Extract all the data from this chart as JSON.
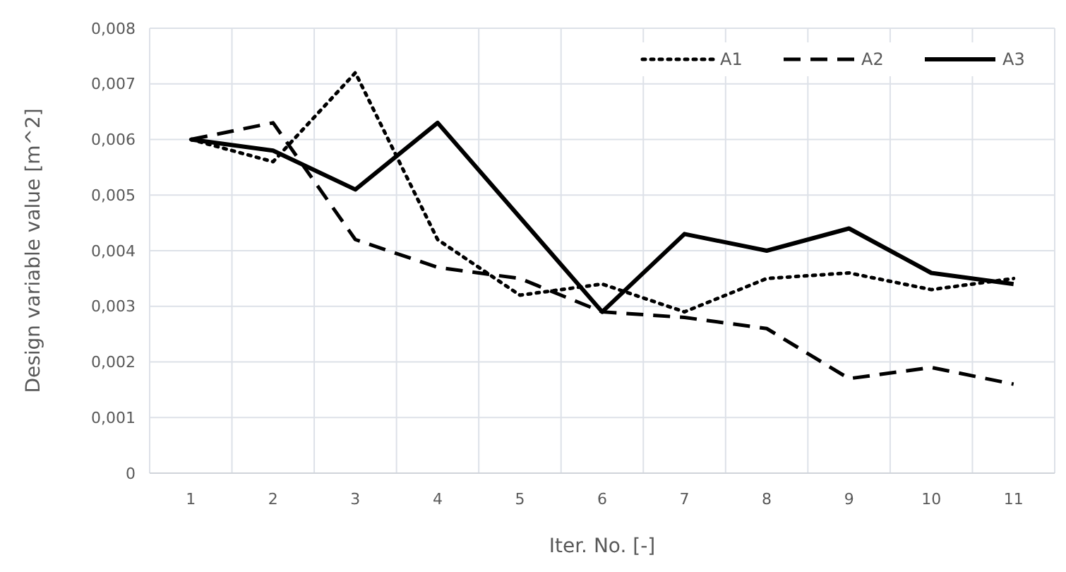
{
  "chart_data": {
    "type": "line",
    "xlabel": "Iter. No. [-]",
    "ylabel": "Design variable value [m^2]",
    "categories": [
      "1",
      "2",
      "3",
      "4",
      "5",
      "6",
      "7",
      "8",
      "9",
      "10",
      "11"
    ],
    "series": [
      {
        "name": "A1",
        "color": "#000000",
        "line_style": "dotted",
        "values": [
          0.006,
          0.0056,
          0.0072,
          0.0042,
          0.0032,
          0.0034,
          0.0029,
          0.0035,
          0.0036,
          0.0033,
          0.0035
        ]
      },
      {
        "name": "A2",
        "color": "#000000",
        "line_style": "dashed",
        "values": [
          0.006,
          0.0063,
          0.0042,
          0.0037,
          0.0035,
          0.0029,
          0.0028,
          0.0026,
          0.0017,
          0.0019,
          0.0016
        ]
      },
      {
        "name": "A3",
        "color": "#000000",
        "line_style": "solid",
        "values": [
          0.006,
          0.0058,
          0.0051,
          0.0063,
          0.0046,
          0.0029,
          0.0043,
          0.004,
          0.0044,
          0.0036,
          0.0034
        ]
      }
    ],
    "ylim": [
      0,
      0.008
    ],
    "yticks": [
      0,
      {
        "value": 0.001,
        "label": "0,001"
      },
      {
        "value": 0.002,
        "label": "0,002"
      },
      {
        "value": 0.003,
        "label": "0,003"
      },
      {
        "value": 0.004,
        "label": "0,004"
      },
      {
        "value": 0.005,
        "label": "0,005"
      },
      {
        "value": 0.006,
        "label": "0,006"
      },
      {
        "value": 0.007,
        "label": "0,007"
      },
      {
        "value": 0.008,
        "label": "0,008"
      }
    ],
    "grid": true,
    "legend": "top right",
    "marker": "none"
  }
}
